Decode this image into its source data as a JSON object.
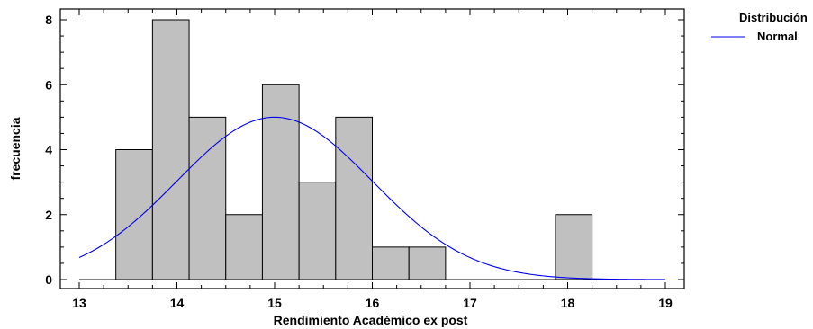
{
  "chart_data": {
    "type": "bar",
    "subtype": "histogram",
    "xlabel": "Rendimiento Académico ex post",
    "ylabel": "frecuencia",
    "xlim": [
      13,
      19
    ],
    "ylim": [
      0,
      8
    ],
    "xticks": [
      "13",
      "14",
      "15",
      "16",
      "17",
      "18",
      "19"
    ],
    "yticks": [
      "0",
      "2",
      "4",
      "6",
      "8"
    ],
    "bins": [
      {
        "start": 13.375,
        "end": 13.75,
        "count": 4
      },
      {
        "start": 13.75,
        "end": 14.125,
        "count": 8
      },
      {
        "start": 14.125,
        "end": 14.5,
        "count": 5
      },
      {
        "start": 14.5,
        "end": 14.875,
        "count": 2
      },
      {
        "start": 14.875,
        "end": 15.25,
        "count": 6
      },
      {
        "start": 15.25,
        "end": 15.625,
        "count": 3
      },
      {
        "start": 15.625,
        "end": 16.0,
        "count": 5
      },
      {
        "start": 16.0,
        "end": 16.375,
        "count": 1
      },
      {
        "start": 16.375,
        "end": 16.75,
        "count": 1
      },
      {
        "start": 17.875,
        "end": 18.25,
        "count": 2
      }
    ],
    "curve": {
      "name": "Normal",
      "mean": 15.0,
      "sd": 1.0,
      "peak": 5.0,
      "x_range": [
        13,
        19
      ],
      "color": "#0000ee"
    },
    "bar_fill": "#c0c0c0",
    "bar_stroke": "#000000",
    "grid": false,
    "legend": {
      "title": "Distribución",
      "entries": [
        "Normal"
      ],
      "position": "top-right"
    }
  }
}
